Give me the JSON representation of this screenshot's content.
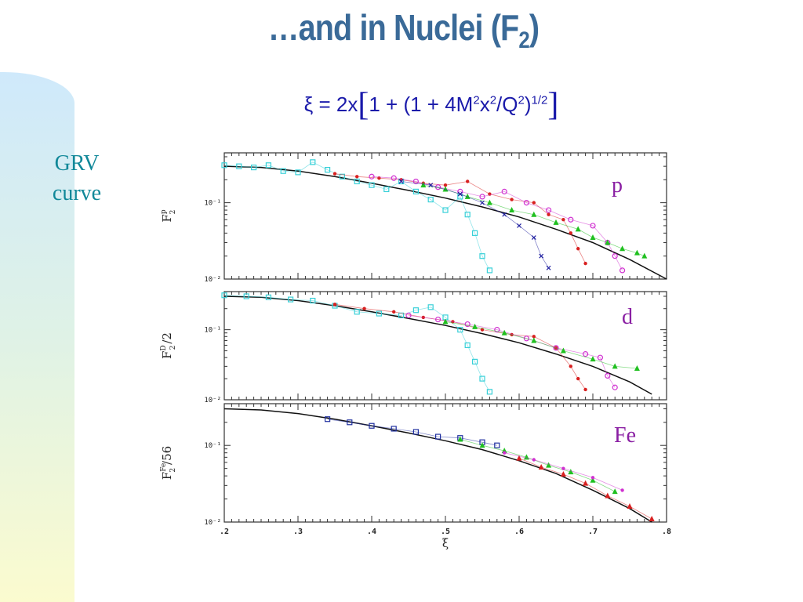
{
  "slide": {
    "title": "…and in Nuclei (F",
    "title_sub": "2",
    "title_end": ")",
    "formula": {
      "lhs": "ξ = 2x",
      "open": "[",
      "inner": "1 + (1 + 4M",
      "sup1": "2",
      "x": "x",
      "sup2": "2",
      "q": "/Q",
      "sup3": "2",
      "rp": ")",
      "sup4": "1/2",
      "close": "]"
    },
    "side_label": [
      "GRV",
      "curve"
    ]
  },
  "chart_data": {
    "type": "scatter",
    "xlabel": "ξ",
    "x_tick_labels": [
      ".2",
      ".3",
      ".4",
      ".5",
      ".6",
      ".7",
      ".8"
    ],
    "xlim": [
      0.2,
      0.8
    ],
    "yscale": "log",
    "panels": [
      {
        "id": "p",
        "tag": "p",
        "tag_color": "#8a1fa3",
        "ylabel_main": "F",
        "ylabel_sub": "2",
        "ylabel_sup": "p",
        "ylabel_tail": "",
        "y_tick_labels": [
          "10⁻¹",
          "10⁻²"
        ],
        "ylim": [
          0.01,
          0.45
        ],
        "grv_curve": [
          [
            0.2,
            0.3
          ],
          [
            0.25,
            0.29
          ],
          [
            0.3,
            0.26
          ],
          [
            0.35,
            0.22
          ],
          [
            0.4,
            0.18
          ],
          [
            0.45,
            0.145
          ],
          [
            0.5,
            0.115
          ],
          [
            0.55,
            0.088
          ],
          [
            0.6,
            0.065
          ],
          [
            0.65,
            0.045
          ],
          [
            0.7,
            0.03
          ],
          [
            0.75,
            0.018
          ],
          [
            0.8,
            0.01
          ]
        ],
        "series": [
          {
            "color": "#38d0d8",
            "marker": "square",
            "points": [
              [
                0.2,
                0.31
              ],
              [
                0.22,
                0.3
              ],
              [
                0.24,
                0.29
              ],
              [
                0.26,
                0.31
              ],
              [
                0.28,
                0.26
              ],
              [
                0.3,
                0.25
              ],
              [
                0.32,
                0.34
              ],
              [
                0.34,
                0.27
              ],
              [
                0.36,
                0.22
              ],
              [
                0.38,
                0.19
              ],
              [
                0.4,
                0.17
              ],
              [
                0.42,
                0.15
              ],
              [
                0.44,
                0.19
              ],
              [
                0.46,
                0.14
              ],
              [
                0.48,
                0.11
              ],
              [
                0.5,
                0.08
              ],
              [
                0.52,
                0.12
              ],
              [
                0.53,
                0.07
              ],
              [
                0.54,
                0.04
              ],
              [
                0.55,
                0.02
              ],
              [
                0.56,
                0.013
              ]
            ]
          },
          {
            "color": "#d82020",
            "marker": "dot",
            "points": [
              [
                0.35,
                0.24
              ],
              [
                0.38,
                0.22
              ],
              [
                0.41,
                0.21
              ],
              [
                0.44,
                0.2
              ],
              [
                0.47,
                0.18
              ],
              [
                0.5,
                0.17
              ],
              [
                0.53,
                0.19
              ],
              [
                0.56,
                0.13
              ],
              [
                0.59,
                0.11
              ],
              [
                0.62,
                0.1
              ],
              [
                0.64,
                0.07
              ],
              [
                0.66,
                0.06
              ],
              [
                0.67,
                0.04
              ],
              [
                0.68,
                0.025
              ],
              [
                0.69,
                0.016
              ]
            ]
          },
          {
            "color": "#d030d0",
            "marker": "circle",
            "points": [
              [
                0.4,
                0.22
              ],
              [
                0.43,
                0.21
              ],
              [
                0.46,
                0.19
              ],
              [
                0.49,
                0.16
              ],
              [
                0.52,
                0.14
              ],
              [
                0.55,
                0.12
              ],
              [
                0.58,
                0.14
              ],
              [
                0.61,
                0.1
              ],
              [
                0.64,
                0.08
              ],
              [
                0.67,
                0.06
              ],
              [
                0.7,
                0.05
              ],
              [
                0.72,
                0.03
              ],
              [
                0.73,
                0.02
              ],
              [
                0.74,
                0.013
              ]
            ]
          },
          {
            "color": "#20c020",
            "marker": "triangle",
            "points": [
              [
                0.47,
                0.17
              ],
              [
                0.5,
                0.15
              ],
              [
                0.53,
                0.12
              ],
              [
                0.56,
                0.1
              ],
              [
                0.59,
                0.08
              ],
              [
                0.62,
                0.07
              ],
              [
                0.65,
                0.055
              ],
              [
                0.68,
                0.045
              ],
              [
                0.7,
                0.035
              ],
              [
                0.72,
                0.03
              ],
              [
                0.74,
                0.025
              ],
              [
                0.76,
                0.022
              ],
              [
                0.77,
                0.02
              ]
            ]
          },
          {
            "color": "#2020a0",
            "marker": "cross",
            "points": [
              [
                0.44,
                0.19
              ],
              [
                0.48,
                0.17
              ],
              [
                0.52,
                0.13
              ],
              [
                0.55,
                0.1
              ],
              [
                0.58,
                0.07
              ],
              [
                0.6,
                0.05
              ],
              [
                0.62,
                0.035
              ],
              [
                0.63,
                0.02
              ],
              [
                0.64,
                0.014
              ]
            ]
          }
        ]
      },
      {
        "id": "d",
        "tag": "d",
        "tag_color": "#8a1fa3",
        "ylabel_main": "F",
        "ylabel_sub": "2",
        "ylabel_sup": "D",
        "ylabel_tail": "/2",
        "y_tick_labels": [
          "10⁻¹",
          "10⁻²"
        ],
        "ylim": [
          0.01,
          0.35
        ],
        "grv_curve": [
          [
            0.2,
            0.3
          ],
          [
            0.25,
            0.29
          ],
          [
            0.3,
            0.26
          ],
          [
            0.35,
            0.22
          ],
          [
            0.4,
            0.18
          ],
          [
            0.45,
            0.145
          ],
          [
            0.5,
            0.115
          ],
          [
            0.55,
            0.088
          ],
          [
            0.6,
            0.065
          ],
          [
            0.65,
            0.045
          ],
          [
            0.7,
            0.03
          ],
          [
            0.75,
            0.018
          ],
          [
            0.78,
            0.012
          ]
        ],
        "series": [
          {
            "color": "#38d0d8",
            "marker": "square",
            "points": [
              [
                0.2,
                0.31
              ],
              [
                0.23,
                0.3
              ],
              [
                0.26,
                0.29
              ],
              [
                0.29,
                0.27
              ],
              [
                0.32,
                0.26
              ],
              [
                0.35,
                0.22
              ],
              [
                0.38,
                0.18
              ],
              [
                0.41,
                0.17
              ],
              [
                0.44,
                0.16
              ],
              [
                0.46,
                0.19
              ],
              [
                0.48,
                0.21
              ],
              [
                0.5,
                0.15
              ],
              [
                0.52,
                0.1
              ],
              [
                0.53,
                0.06
              ],
              [
                0.54,
                0.035
              ],
              [
                0.55,
                0.02
              ],
              [
                0.56,
                0.013
              ]
            ]
          },
          {
            "color": "#d82020",
            "marker": "dot",
            "points": [
              [
                0.35,
                0.23
              ],
              [
                0.39,
                0.2
              ],
              [
                0.43,
                0.18
              ],
              [
                0.47,
                0.15
              ],
              [
                0.51,
                0.13
              ],
              [
                0.55,
                0.1
              ],
              [
                0.59,
                0.085
              ],
              [
                0.62,
                0.08
              ],
              [
                0.65,
                0.055
              ],
              [
                0.67,
                0.03
              ],
              [
                0.68,
                0.02
              ],
              [
                0.69,
                0.014
              ]
            ]
          },
          {
            "color": "#d030d0",
            "marker": "circle",
            "points": [
              [
                0.45,
                0.16
              ],
              [
                0.49,
                0.14
              ],
              [
                0.53,
                0.12
              ],
              [
                0.57,
                0.1
              ],
              [
                0.61,
                0.075
              ],
              [
                0.65,
                0.055
              ],
              [
                0.69,
                0.045
              ],
              [
                0.71,
                0.04
              ],
              [
                0.72,
                0.022
              ],
              [
                0.73,
                0.015
              ]
            ]
          },
          {
            "color": "#20c020",
            "marker": "triangle",
            "points": [
              [
                0.5,
                0.13
              ],
              [
                0.54,
                0.11
              ],
              [
                0.58,
                0.09
              ],
              [
                0.62,
                0.07
              ],
              [
                0.66,
                0.05
              ],
              [
                0.7,
                0.038
              ],
              [
                0.73,
                0.03
              ],
              [
                0.76,
                0.028
              ]
            ]
          }
        ]
      },
      {
        "id": "fe",
        "tag": "Fe",
        "tag_color": "#8a1fa3",
        "ylabel_main": "F",
        "ylabel_sub": "2",
        "ylabel_sup": "Fe",
        "ylabel_tail": "/56",
        "y_tick_labels": [
          "10⁻¹",
          "10⁻²"
        ],
        "ylim": [
          0.01,
          0.35
        ],
        "grv_curve": [
          [
            0.2,
            0.3
          ],
          [
            0.25,
            0.29
          ],
          [
            0.3,
            0.26
          ],
          [
            0.35,
            0.22
          ],
          [
            0.4,
            0.18
          ],
          [
            0.45,
            0.145
          ],
          [
            0.5,
            0.115
          ],
          [
            0.55,
            0.088
          ],
          [
            0.6,
            0.063
          ],
          [
            0.65,
            0.043
          ],
          [
            0.7,
            0.026
          ],
          [
            0.75,
            0.015
          ],
          [
            0.78,
            0.01
          ]
        ],
        "series": [
          {
            "color": "#2030a0",
            "marker": "square",
            "points": [
              [
                0.34,
                0.22
              ],
              [
                0.37,
                0.2
              ],
              [
                0.4,
                0.18
              ],
              [
                0.43,
                0.165
              ],
              [
                0.46,
                0.15
              ],
              [
                0.49,
                0.13
              ],
              [
                0.52,
                0.125
              ],
              [
                0.55,
                0.11
              ],
              [
                0.57,
                0.1
              ]
            ]
          },
          {
            "color": "#20c020",
            "marker": "triangle",
            "points": [
              [
                0.52,
                0.12
              ],
              [
                0.55,
                0.1
              ],
              [
                0.58,
                0.085
              ],
              [
                0.61,
                0.07
              ],
              [
                0.64,
                0.055
              ],
              [
                0.67,
                0.045
              ],
              [
                0.7,
                0.035
              ],
              [
                0.73,
                0.025
              ]
            ]
          },
          {
            "color": "#d82020",
            "marker": "triangle",
            "points": [
              [
                0.6,
                0.068
              ],
              [
                0.63,
                0.052
              ],
              [
                0.66,
                0.042
              ],
              [
                0.69,
                0.032
              ],
              [
                0.72,
                0.022
              ],
              [
                0.75,
                0.016
              ],
              [
                0.78,
                0.011
              ]
            ]
          },
          {
            "color": "#d030d0",
            "marker": "dot",
            "points": [
              [
                0.58,
                0.08
              ],
              [
                0.62,
                0.065
              ],
              [
                0.66,
                0.05
              ],
              [
                0.7,
                0.038
              ],
              [
                0.74,
                0.026
              ]
            ]
          }
        ]
      }
    ]
  }
}
